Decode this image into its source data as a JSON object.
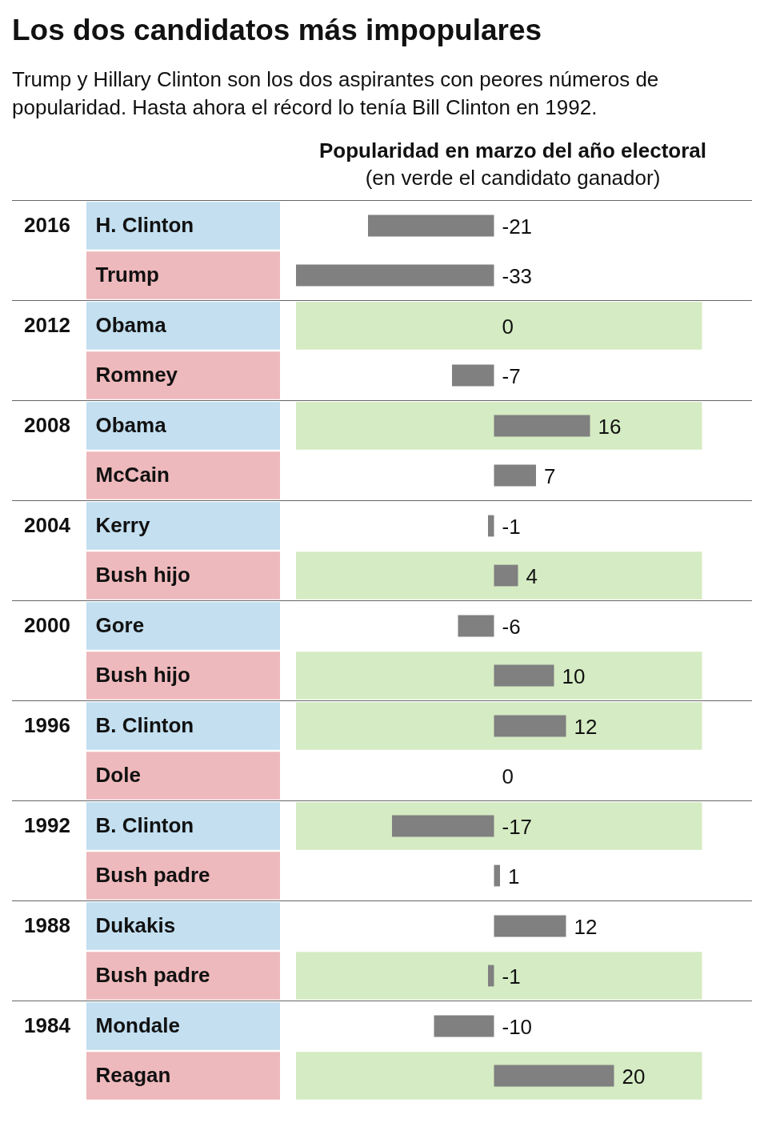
{
  "chart_data": [
    {
      "type": "other",
      "title": "Los dos candidatos más impopulares",
      "subtitle": "Trump y Hillary Clinton son los dos aspirantes con peores números de popularidad. Hasta ahora el récord lo tenía Bill Clinton en 1992.",
      "annotations": [
        "Popularidad en marzo del año electoral",
        "(en verde el candidato ganador)"
      ]
    },
    {
      "type": "bar",
      "orientation": "horizontal",
      "title": "2016",
      "categories": [
        "H. Clinton",
        "Trump"
      ],
      "values": [
        -21,
        -33
      ],
      "color": "#808080",
      "data_labels": true
    },
    {
      "type": "bar",
      "orientation": "horizontal",
      "title": "2012",
      "categories": [
        "Obama",
        "Romney"
      ],
      "values": [
        0,
        -7
      ],
      "color": "#808080",
      "data_labels": true,
      "bands": [
        {
          "axis": "y",
          "from": "Obama",
          "to": "Obama",
          "color": "#d5ebc3"
        }
      ]
    },
    {
      "type": "bar",
      "orientation": "horizontal",
      "title": "2008",
      "categories": [
        "Obama",
        "McCain"
      ],
      "values": [
        16,
        7
      ],
      "color": "#808080",
      "data_labels": true,
      "bands": [
        {
          "axis": "y",
          "from": "Obama",
          "to": "Obama",
          "color": "#d5ebc3"
        }
      ]
    },
    {
      "type": "bar",
      "orientation": "horizontal",
      "title": "2004",
      "categories": [
        "Kerry",
        "Bush hijo"
      ],
      "values": [
        -1,
        4
      ],
      "color": "#808080",
      "data_labels": true,
      "bands": [
        {
          "axis": "y",
          "from": "Bush hijo",
          "to": "Bush hijo",
          "color": "#d5ebc3"
        }
      ]
    },
    {
      "type": "bar",
      "orientation": "horizontal",
      "title": "2000",
      "categories": [
        "Gore",
        "Bush hijo"
      ],
      "values": [
        -6,
        10
      ],
      "color": "#808080",
      "data_labels": true,
      "bands": [
        {
          "axis": "y",
          "from": "Bush hijo",
          "to": "Bush hijo",
          "color": "#d5ebc3"
        }
      ]
    },
    {
      "type": "bar",
      "orientation": "horizontal",
      "title": "1996",
      "categories": [
        "B. Clinton",
        "Dole"
      ],
      "values": [
        12,
        0
      ],
      "color": "#808080",
      "data_labels": true,
      "bands": [
        {
          "axis": "y",
          "from": "B. Clinton",
          "to": "B. Clinton",
          "color": "#d5ebc3"
        }
      ]
    },
    {
      "type": "bar",
      "orientation": "horizontal",
      "title": "1992",
      "categories": [
        "B. Clinton",
        "Bush padre"
      ],
      "values": [
        -17,
        1
      ],
      "color": "#808080",
      "data_labels": true,
      "bands": [
        {
          "axis": "y",
          "from": "B. Clinton",
          "to": "B. Clinton",
          "color": "#d5ebc3"
        }
      ]
    },
    {
      "type": "bar",
      "orientation": "horizontal",
      "title": "1988",
      "categories": [
        "Dukakis",
        "Bush padre"
      ],
      "values": [
        12,
        -1
      ],
      "color": "#808080",
      "data_labels": true,
      "bands": [
        {
          "axis": "y",
          "from": "Bush padre",
          "to": "Bush padre",
          "color": "#d5ebc3"
        }
      ]
    },
    {
      "type": "bar",
      "orientation": "horizontal",
      "title": "1984",
      "categories": [
        "Mondale",
        "Reagan"
      ],
      "values": [
        -10,
        20
      ],
      "color": "#808080",
      "data_labels": true,
      "bands": [
        {
          "axis": "y",
          "from": "Reagan",
          "to": "Reagan",
          "color": "#d5ebc3"
        }
      ]
    }
  ]
}
